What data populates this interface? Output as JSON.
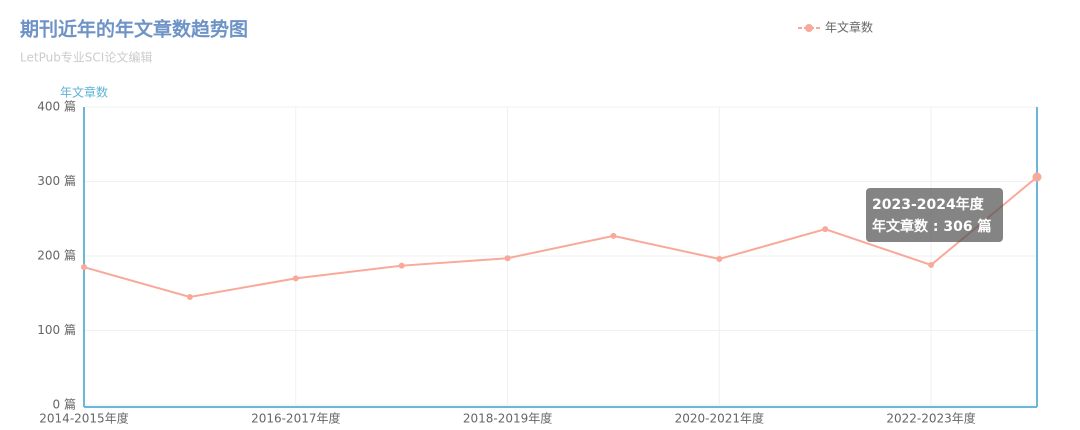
{
  "chart_data": {
    "type": "line",
    "title": "期刊近年的年文章数趋势图",
    "subtitle": "LetPub专业SCI论文编辑",
    "y_axis_label": "年文章数",
    "categories": [
      "2014-2015年度",
      null,
      "2016-2017年度",
      null,
      "2018-2019年度",
      null,
      "2020-2021年度",
      null,
      "2022-2023年度",
      null
    ],
    "series": [
      {
        "name": "年文章数",
        "color": "#f9a99a",
        "values": [
          185,
          145,
          170,
          187,
          197,
          227,
          196,
          236,
          188,
          306
        ]
      }
    ],
    "ylim": [
      0,
      400
    ],
    "yticks": [
      {
        "value": 0,
        "label": "0 篇"
      },
      {
        "value": 100,
        "label": "100 篇"
      },
      {
        "value": 200,
        "label": "200 篇"
      },
      {
        "value": 300,
        "label": "300 篇"
      },
      {
        "value": 400,
        "label": "400 篇"
      }
    ],
    "grid": true,
    "legend": "top-right",
    "tooltip": {
      "title": "2023-2024年度",
      "text": "年文章数 : 306 篇"
    }
  }
}
